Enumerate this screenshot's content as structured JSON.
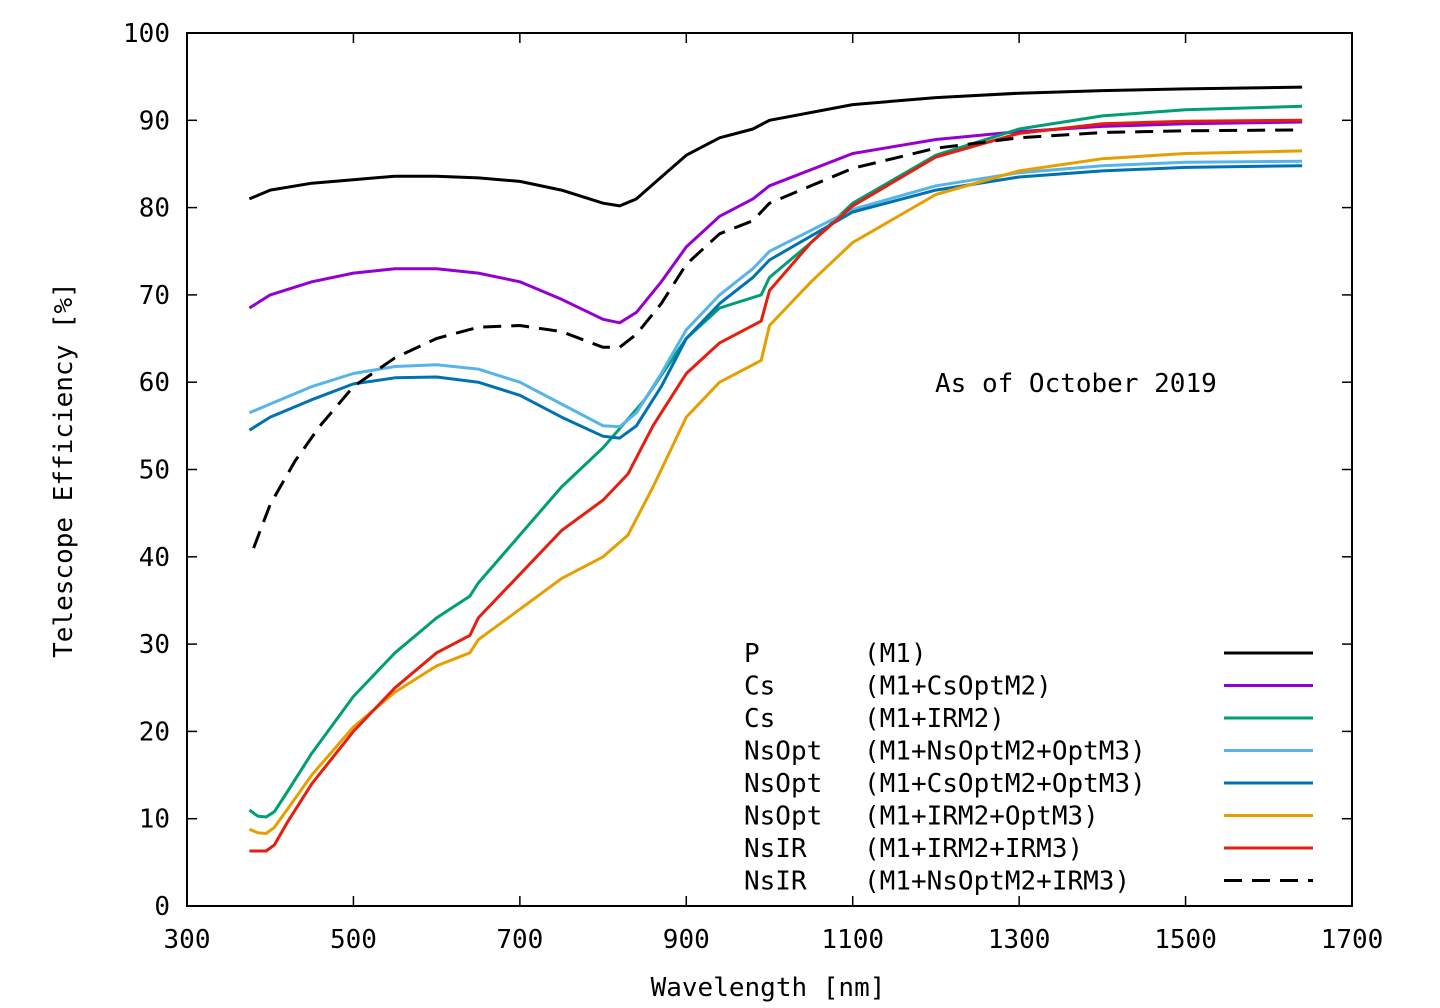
{
  "chart_data": {
    "type": "line",
    "title": "",
    "annotation": "As of October 2019",
    "xlabel": "Wavelength [nm]",
    "ylabel": "Telescope Efficiency [%]",
    "xlim": [
      300,
      1700
    ],
    "ylim": [
      0,
      100
    ],
    "xticks": [
      300,
      500,
      700,
      900,
      1100,
      1300,
      1500,
      1700
    ],
    "yticks": [
      0,
      10,
      20,
      30,
      40,
      50,
      60,
      70,
      80,
      90,
      100
    ],
    "legend_position": "bottom-right",
    "series": [
      {
        "name": "P",
        "config": "(M1)",
        "color": "#000000",
        "dash": false,
        "x": [
          375,
          400,
          450,
          500,
          550,
          600,
          650,
          700,
          750,
          800,
          820,
          840,
          870,
          900,
          940,
          980,
          1000,
          1100,
          1200,
          1300,
          1400,
          1500,
          1640
        ],
        "y": [
          81,
          82,
          82.8,
          83.2,
          83.6,
          83.6,
          83.4,
          83,
          82,
          80.5,
          80.2,
          81,
          83.5,
          86,
          88,
          89,
          90,
          91.8,
          92.6,
          93.1,
          93.4,
          93.6,
          93.8
        ]
      },
      {
        "name": "Cs",
        "config": "(M1+CsOptM2)",
        "color": "#9400d3",
        "dash": false,
        "x": [
          375,
          400,
          450,
          500,
          550,
          600,
          650,
          700,
          750,
          800,
          820,
          840,
          870,
          900,
          940,
          980,
          1000,
          1100,
          1200,
          1300,
          1400,
          1500,
          1640
        ],
        "y": [
          68.5,
          70,
          71.5,
          72.5,
          73,
          73,
          72.5,
          71.5,
          69.5,
          67.2,
          66.8,
          68,
          71.5,
          75.5,
          79,
          81,
          82.5,
          86.2,
          87.8,
          88.7,
          89.3,
          89.6,
          89.8
        ]
      },
      {
        "name": "Cs",
        "config": "(M1+IRM2)",
        "color": "#009e73",
        "dash": false,
        "x": [
          375,
          385,
          395,
          405,
          420,
          450,
          500,
          550,
          600,
          640,
          650,
          700,
          750,
          800,
          850,
          900,
          940,
          990,
          1000,
          1050,
          1100,
          1200,
          1300,
          1400,
          1500,
          1640
        ],
        "y": [
          11,
          10.3,
          10.2,
          10.8,
          13,
          17.5,
          24,
          29,
          33,
          35.5,
          37,
          42.5,
          48,
          52.5,
          58,
          65,
          68.5,
          70,
          72,
          76,
          80.5,
          86,
          89,
          90.5,
          91.2,
          91.6
        ]
      },
      {
        "name": "NsOpt",
        "config": "(M1+NsOptM2+OptM3)",
        "color": "#56b4e9",
        "dash": false,
        "x": [
          375,
          400,
          450,
          500,
          550,
          600,
          650,
          700,
          750,
          800,
          820,
          840,
          870,
          900,
          940,
          980,
          1000,
          1100,
          1200,
          1300,
          1400,
          1500,
          1640
        ],
        "y": [
          56.5,
          57.5,
          59.5,
          61,
          61.8,
          62,
          61.5,
          60,
          57.5,
          55,
          54.9,
          56.5,
          61,
          66,
          70,
          73,
          75,
          79.8,
          82.5,
          84,
          84.8,
          85.2,
          85.3
        ]
      },
      {
        "name": "NsOpt",
        "config": "(M1+CsOptM2+OptM3)",
        "color": "#0072b2",
        "dash": false,
        "x": [
          375,
          400,
          450,
          500,
          550,
          600,
          650,
          700,
          750,
          800,
          820,
          840,
          870,
          900,
          940,
          980,
          1000,
          1100,
          1200,
          1300,
          1400,
          1500,
          1640
        ],
        "y": [
          54.5,
          56,
          58,
          59.8,
          60.5,
          60.6,
          60,
          58.5,
          56,
          53.8,
          53.6,
          55,
          59.5,
          65,
          69,
          72,
          74,
          79.5,
          82,
          83.5,
          84.2,
          84.6,
          84.8
        ]
      },
      {
        "name": "NsOpt",
        "config": "(M1+IRM2+OptM3)",
        "color": "#e69f00",
        "dash": false,
        "x": [
          375,
          385,
          395,
          405,
          420,
          450,
          500,
          550,
          600,
          640,
          650,
          700,
          750,
          800,
          830,
          860,
          900,
          940,
          990,
          1000,
          1050,
          1100,
          1200,
          1300,
          1400,
          1500,
          1640
        ],
        "y": [
          8.8,
          8.4,
          8.3,
          9,
          11,
          15,
          20.5,
          24.5,
          27.5,
          29,
          30.5,
          34,
          37.5,
          40,
          42.5,
          48,
          56,
          60,
          62.5,
          66.5,
          71.5,
          76,
          81.5,
          84.2,
          85.6,
          86.2,
          86.5
        ]
      },
      {
        "name": "NsIR",
        "config": "(M1+IRM2+IRM3)",
        "color": "#e51e10",
        "dash": false,
        "x": [
          375,
          385,
          395,
          405,
          420,
          450,
          500,
          550,
          600,
          640,
          650,
          700,
          750,
          800,
          830,
          860,
          900,
          940,
          990,
          1000,
          1050,
          1100,
          1200,
          1300,
          1400,
          1500,
          1640
        ],
        "y": [
          6.3,
          6.3,
          6.3,
          7,
          9.5,
          14,
          20,
          25,
          29,
          31,
          33,
          38,
          43,
          46.5,
          49.5,
          55,
          61,
          64.5,
          67,
          70.5,
          76,
          80.2,
          85.8,
          88.5,
          89.6,
          89.9,
          90
        ]
      },
      {
        "name": "NsIR",
        "config": "(M1+NsOptM2+IRM3)",
        "color": "#000000",
        "dash": true,
        "x": [
          380,
          400,
          430,
          460,
          500,
          550,
          600,
          650,
          700,
          750,
          800,
          820,
          840,
          870,
          900,
          940,
          980,
          1000,
          1100,
          1200,
          1300,
          1400,
          1500,
          1640
        ],
        "y": [
          41,
          46,
          51,
          55,
          59.5,
          62.8,
          65,
          66.3,
          66.5,
          65.8,
          64,
          64,
          65.5,
          69,
          73.5,
          77,
          78.5,
          80.5,
          84.5,
          86.8,
          88,
          88.6,
          88.8,
          88.9
        ]
      }
    ]
  }
}
